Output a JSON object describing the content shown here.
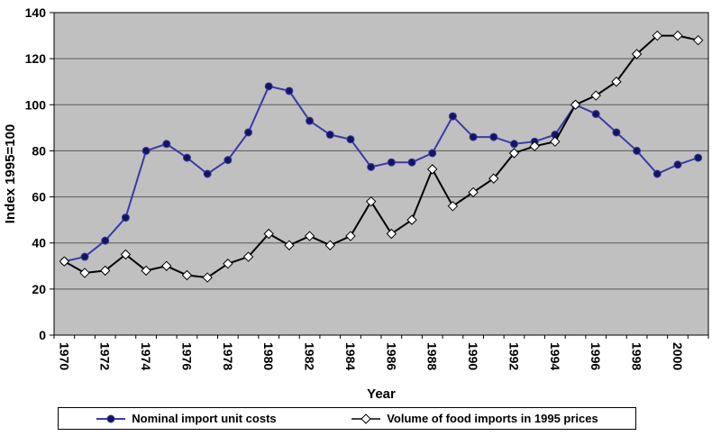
{
  "chart_data": {
    "type": "line",
    "title": "",
    "xlabel": "Year",
    "ylabel": "Index 1995=100",
    "ylim": [
      0,
      140
    ],
    "ytick_step": 20,
    "xtick_label_interval": 2,
    "grid": "horizontal",
    "legend_position": "bottom",
    "plot_bg": "#c0c0c0",
    "gridline_color": "#595959",
    "x": [
      1970,
      1971,
      1972,
      1973,
      1974,
      1975,
      1976,
      1977,
      1978,
      1979,
      1980,
      1981,
      1982,
      1983,
      1984,
      1985,
      1986,
      1987,
      1988,
      1989,
      1990,
      1991,
      1992,
      1993,
      1994,
      1995,
      1996,
      1997,
      1998,
      1999,
      2000,
      2001
    ],
    "series": [
      {
        "name": "Nominal import unit costs",
        "color": "#3a3aa8",
        "marker": "circle",
        "marker_fill": "#15155e",
        "values": [
          32,
          34,
          41,
          51,
          80,
          83,
          77,
          70,
          76,
          88,
          108,
          106,
          93,
          87,
          85,
          73,
          75,
          75,
          79,
          95,
          86,
          86,
          83,
          84,
          87,
          100,
          96,
          88,
          80,
          70,
          74,
          77
        ]
      },
      {
        "name": "Volume of food imports in 1995 prices",
        "color": "#000000",
        "marker": "diamond",
        "marker_fill": "#ffffff",
        "values": [
          32,
          27,
          28,
          35,
          28,
          30,
          26,
          25,
          31,
          34,
          44,
          39,
          43,
          39,
          43,
          58,
          44,
          50,
          72,
          56,
          62,
          68,
          79,
          82,
          84,
          100,
          104,
          110,
          122,
          130,
          130,
          128
        ]
      }
    ]
  }
}
